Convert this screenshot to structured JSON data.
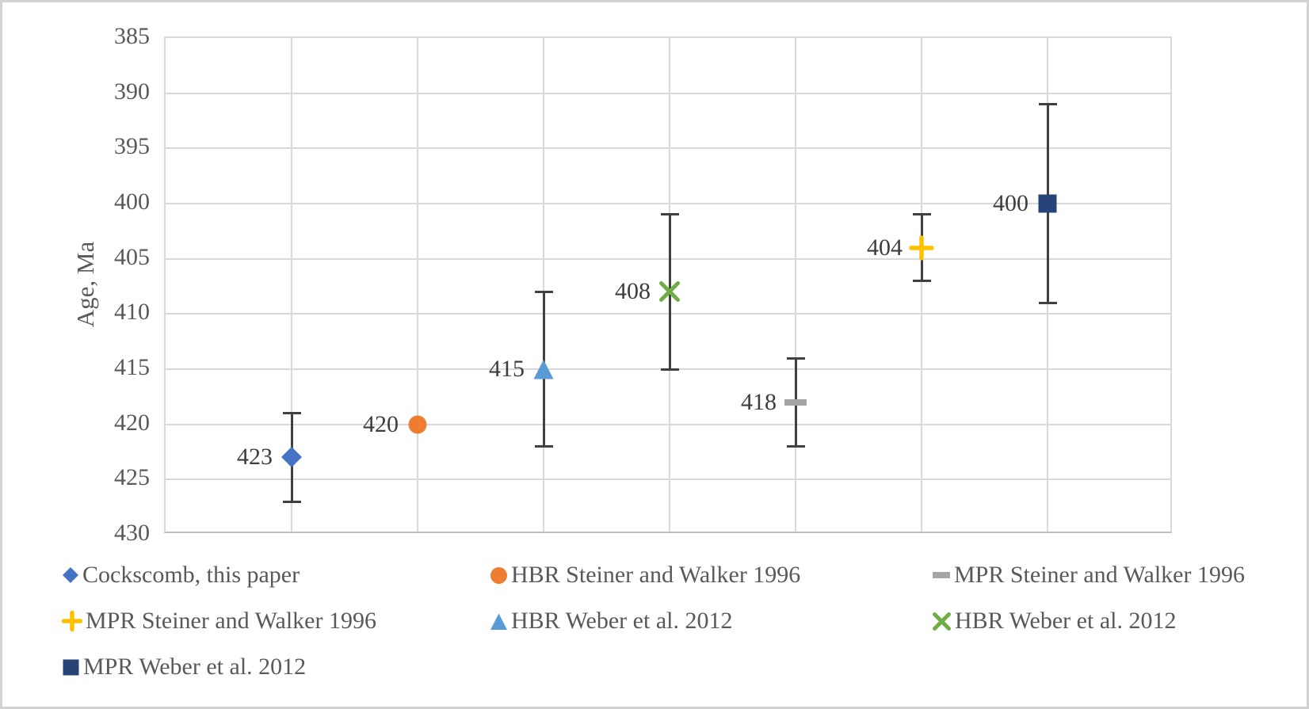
{
  "chart_data": {
    "type": "scatter",
    "title": "",
    "xlabel": "",
    "ylabel": "Age, Ma",
    "y_axis": {
      "min": 385,
      "max": 430,
      "step": 5,
      "inverted_display": "385 at top, 430 at bottom",
      "ticks": [
        "385",
        "390",
        "395",
        "400",
        "405",
        "410",
        "415",
        "420",
        "425",
        "430"
      ]
    },
    "x_axis": {
      "min": 0,
      "max": 8,
      "ticks": [],
      "gridline_positions": [
        1,
        2,
        3,
        4,
        5,
        6,
        7
      ]
    },
    "grid": true,
    "error_bar_color": "#404040",
    "gridline_color": "#d9d9d9",
    "points": [
      {
        "series": "Cockscomb, this paper",
        "x": 1,
        "value": 423,
        "label": "423",
        "marker": "diamond",
        "color": "#4472C4",
        "range": [
          419,
          427
        ]
      },
      {
        "series": "HBR Steiner and Walker 1996",
        "x": 2,
        "value": 420,
        "label": "420",
        "marker": "circle",
        "color": "#ED7D31",
        "range": null
      },
      {
        "series": "HBR Weber et al. 2012",
        "x": 3,
        "value": 415,
        "label": "415",
        "marker": "triangle",
        "color": "#5B9BD5",
        "range": [
          408,
          422
        ]
      },
      {
        "series": "HBR Weber et al. 2012",
        "x": 4,
        "value": 408,
        "label": "408",
        "marker": "x",
        "color": "#70AD47",
        "range": [
          401,
          415
        ]
      },
      {
        "series": "MPR Steiner and Walker 1996",
        "x": 5,
        "value": 418,
        "label": "418",
        "marker": "dash",
        "color": "#A5A5A5",
        "range": [
          414,
          422
        ]
      },
      {
        "series": "MPR Steiner and Walker 1996",
        "x": 6,
        "value": 404,
        "label": "404",
        "marker": "plus",
        "color": "#FFC000",
        "range": [
          401,
          407
        ]
      },
      {
        "series": "MPR Weber et al. 2012",
        "x": 7,
        "value": 400,
        "label": "400",
        "marker": "square",
        "color": "#264478",
        "range": [
          391,
          409
        ]
      }
    ],
    "legend": {
      "position": "bottom",
      "columns": 3,
      "items": [
        {
          "marker": "diamond",
          "color": "#4472C4",
          "label": "Cockscomb, this paper"
        },
        {
          "marker": "circle",
          "color": "#ED7D31",
          "label": "HBR Steiner and Walker 1996"
        },
        {
          "marker": "dash",
          "color": "#A5A5A5",
          "label": "MPR Steiner and Walker 1996"
        },
        {
          "marker": "plus",
          "color": "#FFC000",
          "label": "MPR Steiner and Walker 1996"
        },
        {
          "marker": "triangle",
          "color": "#5B9BD5",
          "label": "HBR Weber et al. 2012"
        },
        {
          "marker": "x",
          "color": "#70AD47",
          "label": "HBR Weber et al. 2012"
        },
        {
          "marker": "square",
          "color": "#264478",
          "label": "MPR Weber et al. 2012"
        }
      ]
    }
  }
}
